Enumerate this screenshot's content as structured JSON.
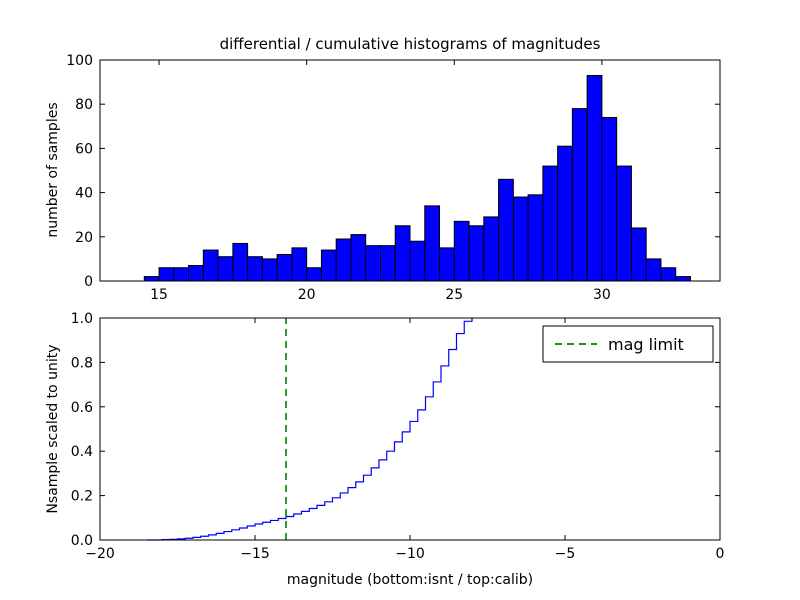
{
  "figure": {
    "background": "#ffffff"
  },
  "chart_data": [
    {
      "type": "bar",
      "axes": "top",
      "title": "differential / cumulative histograms of magnitudes",
      "ylabel": "number of samples",
      "xlabel": "",
      "xlim": [
        13,
        34
      ],
      "ylim": [
        0,
        100
      ],
      "xticks": [
        15,
        20,
        25,
        30
      ],
      "xticklabels": [
        "15",
        "20",
        "25",
        "30"
      ],
      "yticks": [
        0,
        20,
        40,
        60,
        80,
        100
      ],
      "yticklabels": [
        "0",
        "20",
        "40",
        "60",
        "80",
        "100"
      ],
      "bin_start": 14.5,
      "bin_width": 0.5,
      "values": [
        2,
        6,
        6,
        7,
        14,
        11,
        17,
        11,
        10,
        12,
        15,
        6,
        14,
        19,
        21,
        16,
        16,
        25,
        18,
        34,
        15,
        27,
        25,
        29,
        46,
        38,
        39,
        52,
        61,
        78,
        93,
        74,
        52,
        24,
        10,
        6,
        2
      ],
      "bar_color": "#0000ff",
      "bar_edge_color": "#000000",
      "grid": false
    },
    {
      "type": "line",
      "axes": "bottom",
      "title": "",
      "ylabel": "Nsample scaled to unity",
      "xlabel": "magnitude (bottom:isnt / top:calib)",
      "xlim": [
        -20,
        0
      ],
      "ylim": [
        0,
        1
      ],
      "xticks": [
        -20,
        -15,
        -10,
        -5,
        0
      ],
      "xticklabels": [
        "−20",
        "−15",
        "−10",
        "−5",
        "0"
      ],
      "yticks": [
        0,
        0.2,
        0.4,
        0.6,
        0.8,
        1.0
      ],
      "yticklabels": [
        "0.0",
        "0.2",
        "0.4",
        "0.6",
        "0.8",
        "1.0"
      ],
      "line_color": "#0000ff",
      "step_points": [
        [
          -18.5,
          0
        ],
        [
          -18.25,
          0
        ],
        [
          -18,
          0.002
        ],
        [
          -17.75,
          0.003
        ],
        [
          -17.5,
          0.005
        ],
        [
          -17.25,
          0.008
        ],
        [
          -17,
          0.012
        ],
        [
          -16.75,
          0.017
        ],
        [
          -16.5,
          0.023
        ],
        [
          -16.25,
          0.03
        ],
        [
          -16,
          0.038
        ],
        [
          -15.75,
          0.046
        ],
        [
          -15.5,
          0.054
        ],
        [
          -15.25,
          0.063
        ],
        [
          -15,
          0.072
        ],
        [
          -14.75,
          0.08
        ],
        [
          -14.5,
          0.088
        ],
        [
          -14.25,
          0.097
        ],
        [
          -14,
          0.106
        ],
        [
          -13.75,
          0.117
        ],
        [
          -13.5,
          0.129
        ],
        [
          -13.25,
          0.142
        ],
        [
          -13,
          0.156
        ],
        [
          -12.75,
          0.172
        ],
        [
          -12.5,
          0.19
        ],
        [
          -12.25,
          0.212
        ],
        [
          -12,
          0.236
        ],
        [
          -11.75,
          0.262
        ],
        [
          -11.5,
          0.292
        ],
        [
          -11.25,
          0.325
        ],
        [
          -11,
          0.361
        ],
        [
          -10.75,
          0.4
        ],
        [
          -10.5,
          0.442
        ],
        [
          -10.25,
          0.487
        ],
        [
          -10,
          0.534
        ],
        [
          -9.75,
          0.586
        ],
        [
          -9.5,
          0.645
        ],
        [
          -9.25,
          0.712
        ],
        [
          -9,
          0.784
        ],
        [
          -8.75,
          0.858
        ],
        [
          -8.5,
          0.93
        ],
        [
          -8.25,
          0.985
        ],
        [
          -8,
          1.0
        ]
      ],
      "mag_limit": {
        "x": -14,
        "color": "#008000",
        "linestyle": "dashed",
        "label": "mag limit"
      },
      "legend": {
        "location": "upper right",
        "entries": [
          {
            "label": "mag limit",
            "color": "#008000",
            "linestyle": "dashed"
          }
        ]
      },
      "grid": false
    }
  ]
}
